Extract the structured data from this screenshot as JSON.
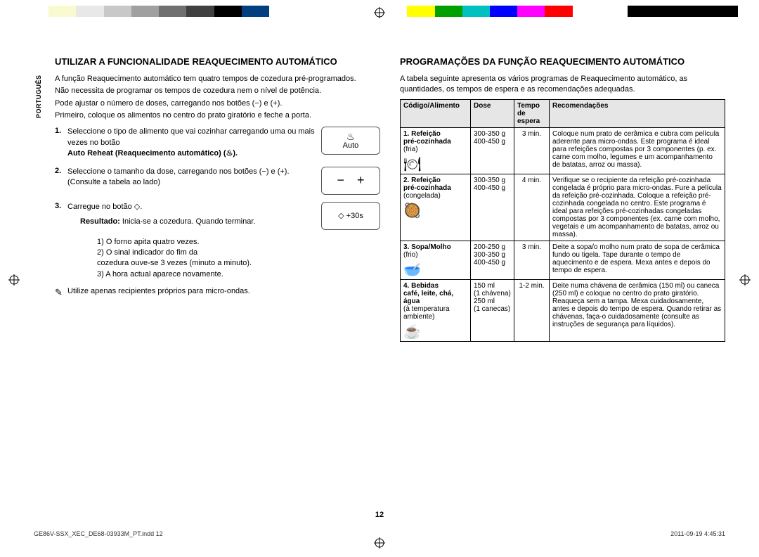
{
  "lang_tab": "PORTUGUÊS",
  "topbar_colors": [
    "#ffffff",
    "#fafad0",
    "#e8e8e8",
    "#c8c8c8",
    "#a0a0a0",
    "#707070",
    "#404040",
    "#000000",
    "#004080",
    "#ffffff",
    "#ffffff",
    "#ffffff",
    "#ffffff",
    "#ffffff",
    "#ffff00",
    "#00a000",
    "#00c0c0",
    "#0000ff",
    "#ff00ff",
    "#ff0000",
    "#ffffff",
    "#ffffff",
    "#000000",
    "#000000",
    "#000000",
    "#000000"
  ],
  "left": {
    "title": "UTILIZAR A FUNCIONALIDADE REAQUECIMENTO AUTOMÁTICO",
    "intro1": "A função Reaquecimento automático tem quatro tempos de cozedura pré-programados.",
    "intro2": "Não necessita de programar os tempos de cozedura nem o nível de potência.",
    "intro3": "Pode ajustar o número de doses, carregando nos botões (−) e (+).",
    "intro4": "Primeiro, coloque os alimentos no centro do prato giratório e feche a porta.",
    "steps": [
      {
        "n": "1.",
        "txt": "Seleccione o tipo de alimento que vai cozinhar carregando uma ou mais vezes no botão",
        "bold": "Auto Reheat (Reaquecimento automático) (♨).",
        "btn": "Auto",
        "btn_type": "auto"
      },
      {
        "n": "2.",
        "txt": "Seleccione o tamanho da dose, carregando nos botões (−) e (+). (Consulte a tabela ao lado)",
        "btn_type": "pm"
      },
      {
        "n": "3.",
        "txt": "Carregue no botão ◇.",
        "btn": "◇ +30s",
        "btn_type": "plain"
      }
    ],
    "result_label": "Resultado:",
    "result_txt": "Inicia-se a cozedura. Quando terminar.",
    "result_items": [
      "1) O forno apita quatro vezes.",
      "2) O sinal indicador do fim da",
      "    cozedura ouve-se 3 vezes (minuto a minuto).",
      "3) A hora actual aparece novamente."
    ],
    "note": "Utilize apenas recipientes próprios para micro-ondas."
  },
  "right": {
    "title": "PROGRAMAÇÕES DA FUNÇÃO REAQUECIMENTO AUTOMÁTICO",
    "desc": "A tabela seguinte apresenta os vários programas de Reaquecimento automático, as quantidades, os tempos de espera e as recomendações adequadas.",
    "headers": [
      "Código/Alimento",
      "Dose",
      "Tempo de espera",
      "Recomendações"
    ],
    "rows": [
      {
        "code": "1. Refeição",
        "sub": "pré-cozinhada",
        "paren": "(fria)",
        "icon": "🍽",
        "dose": "300-350 g\n400-450 g",
        "wait": "3 min.",
        "reco": "Coloque num prato de cerâmica e cubra com película aderente para micro-ondas. Este programa é ideal para refeições compostas por 3 componentes (p. ex. carne com molho, legumes e um acompanhamento de batatas, arroz ou massa)."
      },
      {
        "code": "2. Refeição",
        "sub": "pré-cozinhada",
        "paren": "(congelada)",
        "icon": "🥘",
        "dose": "300-350 g\n400-450 g",
        "wait": "4 min.",
        "reco": "Verifique se o recipiente da refeição pré-cozinhada congelada é próprio para micro-ondas. Fure a película da refeição pré-cozinhada. Coloque a refeição pré-cozinhada congelada no centro. Este programa é ideal para refeições pré-cozinhadas congeladas compostas por 3 componentes (ex. carne com molho, vegetais e um acompanhamento de batatas, arroz ou massa)."
      },
      {
        "code": "3. Sopa/Molho",
        "sub": "",
        "paren": "(frio)",
        "icon": "🥣",
        "dose": "200-250 g\n300-350 g\n400-450 g",
        "wait": "3 min.",
        "reco": "Deite a sopa/o molho num prato de sopa de cerâmica fundo ou tigela. Tape durante o tempo de aquecimento e de espera. Mexa antes e depois do tempo de espera."
      },
      {
        "code": "4. Bebidas",
        "sub": "café, leite, chá, água",
        "paren": "(à temperatura ambiente)",
        "icon": "☕",
        "dose": "150 ml\n(1 chávena)\n250 ml\n(1 canecas)",
        "wait": "1-2 min.",
        "reco": "Deite numa chávena de cerâmica (150 ml) ou caneca (250 ml) e coloque no centro do prato giratório. Reaqueça sem a tampa. Mexa cuidadosamente, antes e depois do tempo de espera. Quando retirar as chávenas, faça-o cuidadosamente (consulte as instruções de segurança para líquidos)."
      }
    ]
  },
  "page_number": "12",
  "footer_left": "GE86V-SSX_XEC_DE68-03933M_PT.indd   12",
  "footer_right": "2011-09-19   4:45:31"
}
